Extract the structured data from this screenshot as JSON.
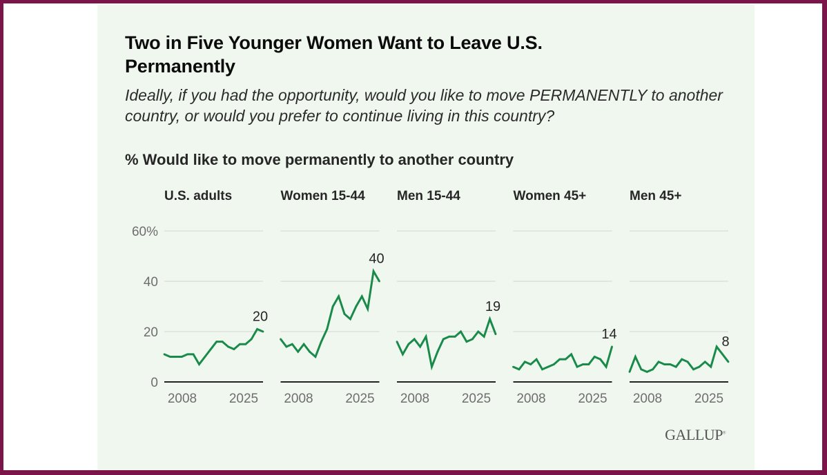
{
  "title": "Two in Five Younger Women Want to Leave U.S. Permanently",
  "subtitle": "Ideally, if you had the opportunity, would you like to move PERMANENTLY to another country, or would you prefer to continue living in this country?",
  "measure_label": "% Would like to move permanently to another country",
  "brand": "GALLUP",
  "colors": {
    "line": "#1a8a4a",
    "frame": "#7b1549",
    "panel_bg": "#f0f7ef",
    "grid": "#d8dcd6"
  },
  "chart_data": {
    "type": "line",
    "title": "Two in Five Younger Women Want to Leave U.S. Permanently",
    "ylabel": "% Would like to move permanently to another country",
    "ylim": [
      0,
      60
    ],
    "yticks": [
      0,
      20,
      40,
      60
    ],
    "ytick_labels": [
      "0",
      "20",
      "40",
      "60%"
    ],
    "xtick_labels": [
      "2008",
      "2025"
    ],
    "grid": true,
    "layout": "small-multiples",
    "panels": [
      {
        "name": "U.S. adults",
        "end_label": "20",
        "values": [
          11,
          10,
          10,
          10,
          11,
          11,
          7,
          10,
          13,
          16,
          16,
          14,
          13,
          15,
          15,
          17,
          21,
          20
        ]
      },
      {
        "name": "Women 15-44",
        "end_label": "40",
        "values": [
          17,
          14,
          15,
          12,
          15,
          12,
          10,
          16,
          21,
          30,
          34,
          27,
          25,
          30,
          34,
          29,
          44,
          40
        ]
      },
      {
        "name": "Men 15-44",
        "end_label": "19",
        "values": [
          16,
          11,
          15,
          17,
          14,
          18,
          6,
          12,
          17,
          18,
          18,
          20,
          16,
          17,
          20,
          18,
          25,
          19
        ]
      },
      {
        "name": "Women 45+",
        "end_label": "14",
        "values": [
          6,
          5,
          8,
          7,
          9,
          5,
          6,
          7,
          9,
          9,
          11,
          6,
          7,
          7,
          10,
          9,
          6,
          14
        ]
      },
      {
        "name": "Men 45+",
        "end_label": "8",
        "values": [
          4,
          10,
          5,
          4,
          5,
          8,
          7,
          7,
          6,
          9,
          8,
          5,
          6,
          8,
          6,
          14,
          11,
          8
        ]
      }
    ]
  }
}
